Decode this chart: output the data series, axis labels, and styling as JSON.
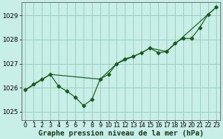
{
  "xlabel": "Graphe pression niveau de la mer (hPa)",
  "background_color": "#c8eee8",
  "grid_color": "#99ccbb",
  "line_color": "#1a5c1a",
  "xlim": [
    -0.5,
    23.5
  ],
  "ylim": [
    1024.65,
    1029.55
  ],
  "yticks": [
    1025,
    1026,
    1027,
    1028,
    1029
  ],
  "xticks": [
    0,
    1,
    2,
    3,
    4,
    5,
    6,
    7,
    8,
    9,
    10,
    11,
    12,
    13,
    14,
    15,
    16,
    17,
    18,
    19,
    20,
    21,
    22,
    23
  ],
  "series1_x": [
    0,
    1,
    2,
    3,
    4,
    5,
    6,
    7,
    8,
    9,
    10,
    11,
    12,
    13,
    14,
    15,
    16,
    17,
    18,
    19,
    20,
    21,
    22,
    23
  ],
  "series1_y": [
    1025.9,
    1026.15,
    1026.35,
    1026.55,
    1026.05,
    1025.85,
    1025.6,
    1025.25,
    1025.5,
    1026.35,
    1026.55,
    1027.0,
    1027.2,
    1027.3,
    1027.45,
    1027.65,
    1027.45,
    1027.5,
    1027.85,
    1028.05,
    1028.05,
    1028.5,
    1029.05,
    1029.35
  ],
  "series2_x": [
    0,
    3,
    9,
    11,
    14,
    15,
    17,
    22,
    23
  ],
  "series2_y": [
    1025.9,
    1026.55,
    1026.35,
    1027.0,
    1027.45,
    1027.65,
    1027.5,
    1029.05,
    1029.35
  ],
  "xlabel_fontsize": 7.5,
  "tick_fontsize": 6,
  "ytick_fontsize": 6.5,
  "marker_size": 2.5,
  "line_width": 0.9
}
